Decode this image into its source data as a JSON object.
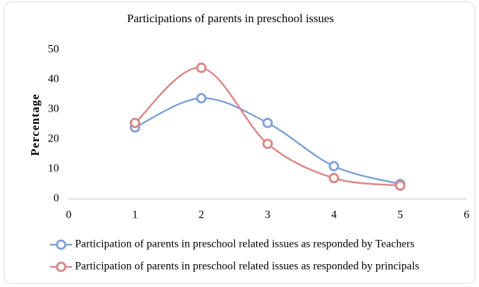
{
  "chart_data": {
    "type": "line",
    "smooth": true,
    "title": "Participations of parents in preschool issues",
    "ylabel": "Percentage",
    "x": [
      1,
      2,
      3,
      4,
      5
    ],
    "series": [
      {
        "name": "Participation of parents in preschool related issues as responded by Teachers",
        "color": "#7fa3d6",
        "values": [
          24,
          33.8,
          25.5,
          11,
          5
        ]
      },
      {
        "name": "Participation of parents in preschool related issues as responded by principals",
        "color": "#d98787",
        "values": [
          25.5,
          44,
          18.5,
          7,
          4.5
        ]
      }
    ],
    "xlim": [
      0,
      6
    ],
    "xticks": [
      0,
      1,
      2,
      3,
      4,
      5,
      6
    ],
    "ylim": [
      0,
      50
    ],
    "yticks": [
      0,
      10,
      20,
      30,
      40,
      50
    ],
    "grid": false,
    "legend": "bottom"
  }
}
